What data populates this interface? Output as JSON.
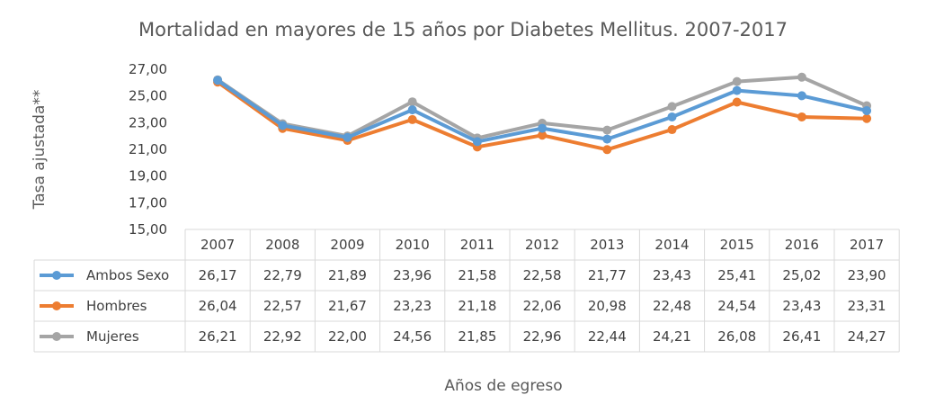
{
  "chart_data": {
    "type": "line",
    "title": "Mortalidad en mayores de 15 años por Diabetes Mellitus. 2007-2017",
    "xlabel": "Años de egreso",
    "ylabel": "Tasa ajustada**",
    "ylim": [
      15,
      27
    ],
    "yticks": [
      "15,00",
      "17,00",
      "19,00",
      "21,00",
      "23,00",
      "25,00",
      "27,00"
    ],
    "grid": false,
    "legend": "data-table-rows",
    "categories": [
      "2007",
      "2008",
      "2009",
      "2010",
      "2011",
      "2012",
      "2013",
      "2014",
      "2015",
      "2016",
      "2017"
    ],
    "series": [
      {
        "name": "Ambos Sexo",
        "color": "#5B9BD5",
        "values": [
          26.17,
          22.79,
          21.89,
          23.96,
          21.58,
          22.58,
          21.77,
          23.43,
          25.41,
          25.02,
          23.9
        ],
        "labels": [
          "26,17",
          "22,79",
          "21,89",
          "23,96",
          "21,58",
          "22,58",
          "21,77",
          "23,43",
          "25,41",
          "25,02",
          "23,90"
        ]
      },
      {
        "name": "Hombres",
        "color": "#ED7D31",
        "values": [
          26.04,
          22.57,
          21.67,
          23.23,
          21.18,
          22.06,
          20.98,
          22.48,
          24.54,
          23.43,
          23.31
        ],
        "labels": [
          "26,04",
          "22,57",
          "21,67",
          "23,23",
          "21,18",
          "22,06",
          "20,98",
          "22,48",
          "24,54",
          "23,43",
          "23,31"
        ]
      },
      {
        "name": "Mujeres",
        "color": "#A5A5A5",
        "values": [
          26.21,
          22.92,
          22.0,
          24.56,
          21.85,
          22.96,
          22.44,
          24.21,
          26.08,
          26.41,
          24.27
        ],
        "labels": [
          "26,21",
          "22,92",
          "22,00",
          "24,56",
          "21,85",
          "22,96",
          "22,44",
          "24,21",
          "26,08",
          "26,41",
          "24,27"
        ]
      }
    ]
  }
}
